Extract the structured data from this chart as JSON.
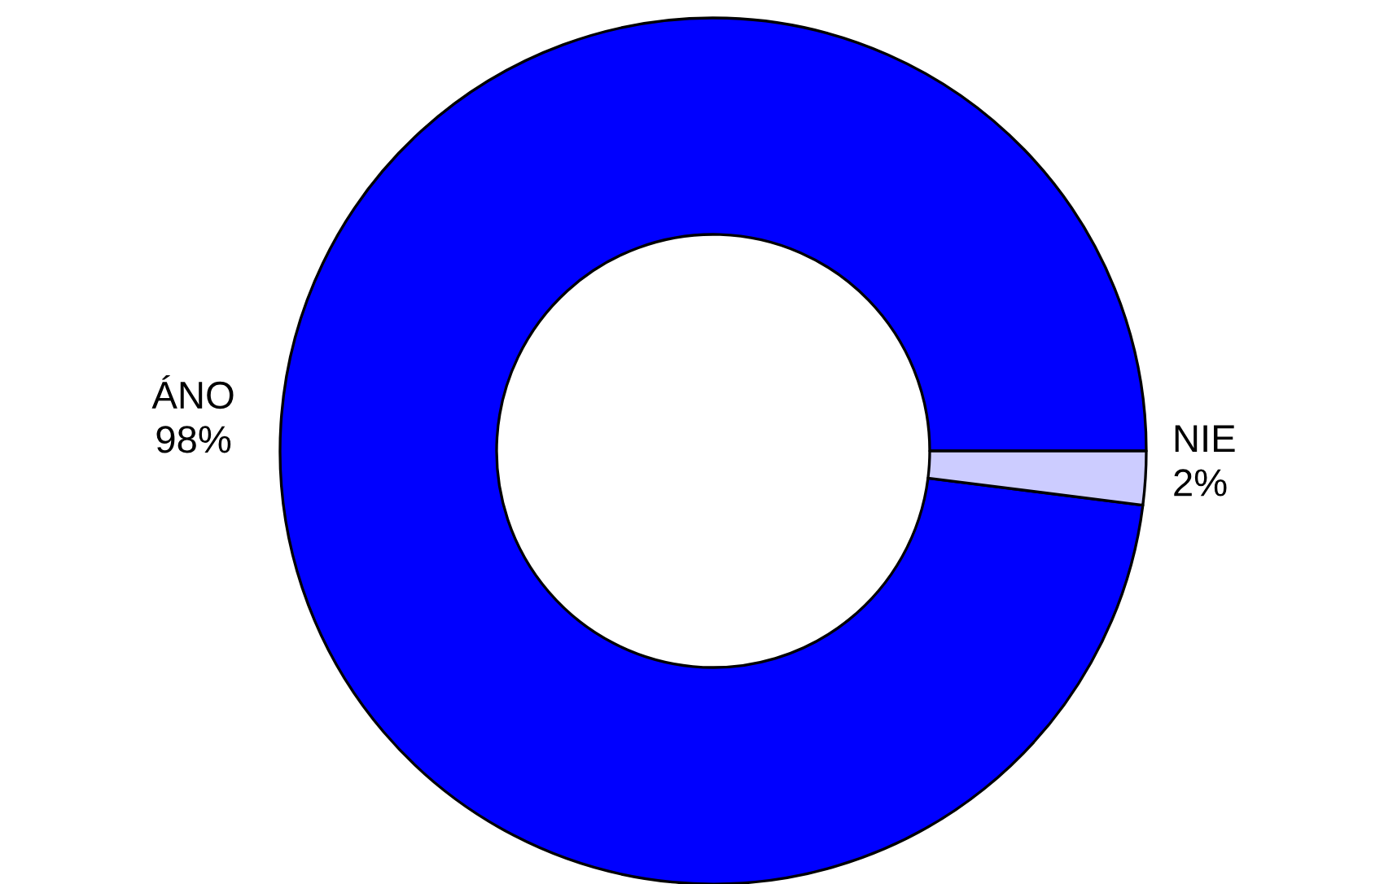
{
  "chart_data": {
    "type": "donut",
    "categories": [
      "ÁNO",
      "NIE"
    ],
    "values": [
      98,
      2
    ],
    "colors": [
      "#0000ff",
      "#ccccff"
    ],
    "value_labels": [
      "98%",
      "2%"
    ],
    "legend": false
  }
}
